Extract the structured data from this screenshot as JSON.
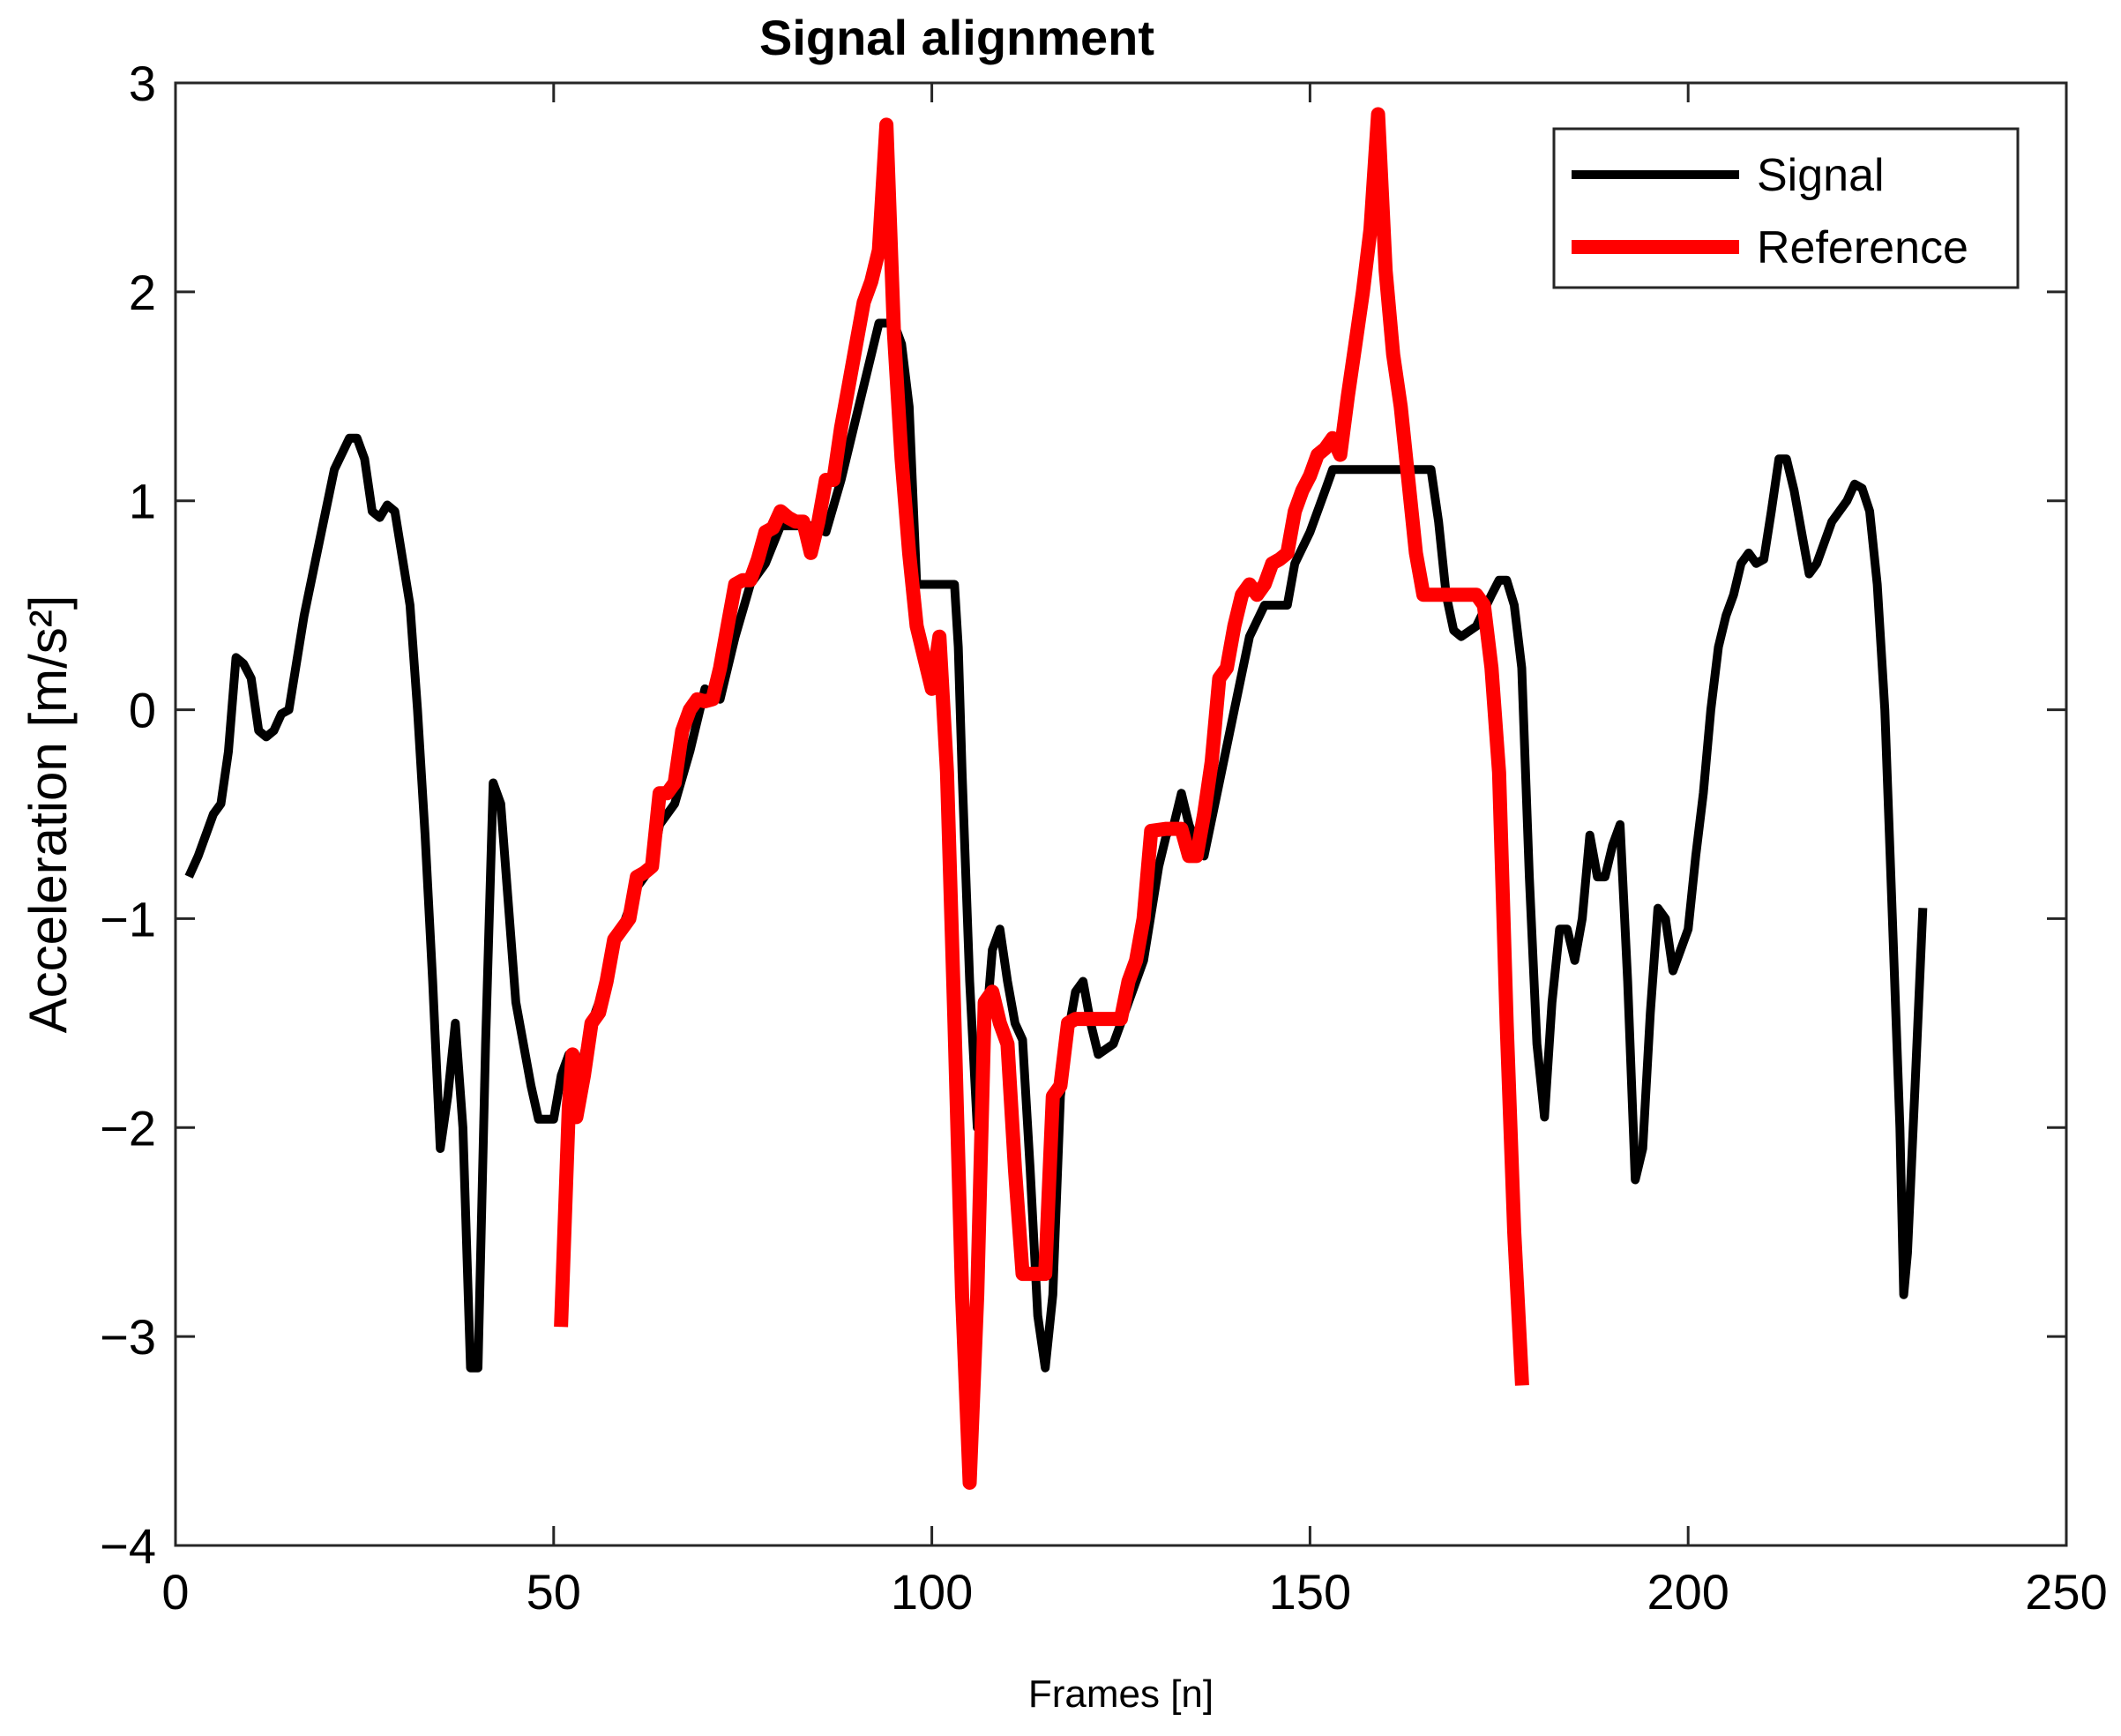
{
  "chart_data": {
    "type": "line",
    "title": "Signal alignment",
    "xlabel": "Frames [n]",
    "ylabel": "Acceleration [m/s²]",
    "xlim": [
      0,
      250
    ],
    "ylim": [
      -4,
      3
    ],
    "xticks": [
      0,
      50,
      100,
      150,
      200,
      250
    ],
    "yticks": [
      -4,
      -3,
      -2,
      -1,
      0,
      1,
      2,
      3
    ],
    "xtick_labels": [
      "0",
      "50",
      "100",
      "150",
      "200",
      "250"
    ],
    "ytick_labels": [
      "−4",
      "−3",
      "−2",
      "−1",
      "0",
      "1",
      "2",
      "3"
    ],
    "grid": false,
    "legend_position": "top-right",
    "series": [
      {
        "name": "Signal",
        "color": "#000000",
        "points": [
          [
            2,
            -0.78
          ],
          [
            3,
            -0.7
          ],
          [
            5,
            -0.5
          ],
          [
            6,
            -0.45
          ],
          [
            7,
            -0.2
          ],
          [
            8,
            0.25
          ],
          [
            9,
            0.22
          ],
          [
            10,
            0.15
          ],
          [
            11,
            -0.1
          ],
          [
            12,
            -0.13
          ],
          [
            13,
            -0.1
          ],
          [
            14,
            -0.02
          ],
          [
            15,
            0.0
          ],
          [
            17,
            0.45
          ],
          [
            19,
            0.8
          ],
          [
            21,
            1.15
          ],
          [
            23,
            1.3
          ],
          [
            24,
            1.3
          ],
          [
            25,
            1.2
          ],
          [
            26,
            0.95
          ],
          [
            27,
            0.92
          ],
          [
            28,
            0.98
          ],
          [
            29,
            0.95
          ],
          [
            31,
            0.5
          ],
          [
            32,
            0.0
          ],
          [
            33,
            -0.6
          ],
          [
            34,
            -1.3
          ],
          [
            35,
            -2.1
          ],
          [
            36,
            -1.85
          ],
          [
            37,
            -1.5
          ],
          [
            38,
            -2.0
          ],
          [
            39,
            -3.15
          ],
          [
            40,
            -3.15
          ],
          [
            41,
            -1.6
          ],
          [
            42,
            -0.35
          ],
          [
            43,
            -0.45
          ],
          [
            45,
            -1.4
          ],
          [
            47,
            -1.8
          ],
          [
            48,
            -1.96
          ],
          [
            50,
            -1.96
          ],
          [
            51,
            -1.75
          ],
          [
            52,
            -1.65
          ],
          [
            53,
            -1.95
          ],
          [
            54,
            -1.65
          ],
          [
            55,
            -1.5
          ],
          [
            57,
            -1.3
          ],
          [
            58,
            -1.1
          ],
          [
            59,
            -1.05
          ],
          [
            61,
            -0.85
          ],
          [
            63,
            -0.75
          ],
          [
            64,
            -0.55
          ],
          [
            66,
            -0.45
          ],
          [
            68,
            -0.2
          ],
          [
            70,
            0.1
          ],
          [
            72,
            0.05
          ],
          [
            74,
            0.35
          ],
          [
            76,
            0.6
          ],
          [
            78,
            0.7
          ],
          [
            80,
            0.88
          ],
          [
            84,
            0.88
          ],
          [
            86,
            0.85
          ],
          [
            88,
            1.1
          ],
          [
            90,
            1.4
          ],
          [
            92,
            1.7
          ],
          [
            93,
            1.85
          ],
          [
            95,
            1.85
          ],
          [
            96,
            1.75
          ],
          [
            97,
            1.45
          ],
          [
            98,
            0.6
          ],
          [
            99,
            0.6
          ],
          [
            101,
            0.6
          ],
          [
            103,
            0.6
          ],
          [
            103.5,
            0.3
          ],
          [
            104,
            -0.3
          ],
          [
            105,
            -1.3
          ],
          [
            106,
            -2.0
          ],
          [
            107,
            -1.6
          ],
          [
            108,
            -1.15
          ],
          [
            109,
            -1.05
          ],
          [
            110,
            -1.3
          ],
          [
            111,
            -1.5
          ],
          [
            112,
            -1.58
          ],
          [
            113,
            -2.2
          ],
          [
            114,
            -2.9
          ],
          [
            115,
            -3.15
          ],
          [
            116,
            -2.8
          ],
          [
            117,
            -1.85
          ],
          [
            118,
            -1.55
          ],
          [
            119,
            -1.35
          ],
          [
            120,
            -1.3
          ],
          [
            121,
            -1.5
          ],
          [
            122,
            -1.65
          ],
          [
            124,
            -1.6
          ],
          [
            126,
            -1.4
          ],
          [
            128,
            -1.2
          ],
          [
            130,
            -0.75
          ],
          [
            131,
            -0.6
          ],
          [
            132,
            -0.55
          ],
          [
            133,
            -0.4
          ],
          [
            134,
            -0.55
          ],
          [
            135,
            -0.65
          ],
          [
            136,
            -0.7
          ],
          [
            138,
            -0.35
          ],
          [
            140,
            0.0
          ],
          [
            142,
            0.35
          ],
          [
            144,
            0.5
          ],
          [
            146,
            0.5
          ],
          [
            147,
            0.5
          ],
          [
            148,
            0.7
          ],
          [
            150,
            0.85
          ],
          [
            152,
            1.05
          ],
          [
            153,
            1.15
          ],
          [
            158,
            1.15
          ],
          [
            162,
            1.15
          ],
          [
            166,
            1.15
          ],
          [
            167,
            0.9
          ],
          [
            168,
            0.55
          ],
          [
            169,
            0.38
          ],
          [
            170,
            0.35
          ],
          [
            172,
            0.4
          ],
          [
            174,
            0.55
          ],
          [
            175,
            0.62
          ],
          [
            176,
            0.62
          ],
          [
            177,
            0.5
          ],
          [
            178,
            0.2
          ],
          [
            179,
            -0.8
          ],
          [
            180,
            -1.6
          ],
          [
            181,
            -1.95
          ],
          [
            182,
            -1.4
          ],
          [
            183,
            -1.05
          ],
          [
            184,
            -1.05
          ],
          [
            185,
            -1.2
          ],
          [
            186,
            -1.0
          ],
          [
            187,
            -0.6
          ],
          [
            188,
            -0.8
          ],
          [
            189,
            -0.8
          ],
          [
            190,
            -0.65
          ],
          [
            191,
            -0.55
          ],
          [
            192,
            -1.3
          ],
          [
            193,
            -2.25
          ],
          [
            194,
            -2.1
          ],
          [
            195,
            -1.45
          ],
          [
            196,
            -0.95
          ],
          [
            197,
            -1.0
          ],
          [
            198,
            -1.25
          ],
          [
            199,
            -1.15
          ],
          [
            200,
            -1.05
          ],
          [
            201,
            -0.7
          ],
          [
            202,
            -0.4
          ],
          [
            203,
            0.0
          ],
          [
            204,
            0.3
          ],
          [
            205,
            0.45
          ],
          [
            206,
            0.55
          ],
          [
            207,
            0.7
          ],
          [
            208,
            0.75
          ],
          [
            209,
            0.7
          ],
          [
            210,
            0.72
          ],
          [
            211,
            0.95
          ],
          [
            212,
            1.2
          ],
          [
            213,
            1.2
          ],
          [
            214,
            1.05
          ],
          [
            215,
            0.85
          ],
          [
            216,
            0.65
          ],
          [
            217,
            0.7
          ],
          [
            218,
            0.8
          ],
          [
            219,
            0.9
          ],
          [
            220,
            0.95
          ],
          [
            221,
            1.0
          ],
          [
            222,
            1.08
          ],
          [
            223,
            1.06
          ],
          [
            224,
            0.95
          ],
          [
            225,
            0.6
          ],
          [
            226,
            0.0
          ],
          [
            227,
            -1.0
          ],
          [
            228,
            -2.0
          ],
          [
            228.5,
            -2.8
          ],
          [
            229,
            -2.6
          ],
          [
            230,
            -1.8
          ],
          [
            231,
            -0.97
          ]
        ]
      },
      {
        "name": "Reference",
        "color": "#ff0000",
        "points": [
          [
            51,
            -2.92
          ],
          [
            52,
            -1.9
          ],
          [
            52.5,
            -1.65
          ],
          [
            53,
            -1.95
          ],
          [
            54,
            -1.75
          ],
          [
            55,
            -1.5
          ],
          [
            56,
            -1.45
          ],
          [
            57,
            -1.3
          ],
          [
            58,
            -1.1
          ],
          [
            59,
            -1.05
          ],
          [
            60,
            -1.0
          ],
          [
            61,
            -0.8
          ],
          [
            62,
            -0.78
          ],
          [
            63,
            -0.75
          ],
          [
            64,
            -0.4
          ],
          [
            65,
            -0.4
          ],
          [
            66,
            -0.35
          ],
          [
            67,
            -0.1
          ],
          [
            68,
            0.0
          ],
          [
            69,
            0.05
          ],
          [
            70,
            0.04
          ],
          [
            71,
            0.05
          ],
          [
            72,
            0.2
          ],
          [
            73,
            0.4
          ],
          [
            74,
            0.6
          ],
          [
            75,
            0.62
          ],
          [
            76,
            0.62
          ],
          [
            77,
            0.72
          ],
          [
            78,
            0.85
          ],
          [
            79,
            0.87
          ],
          [
            80,
            0.95
          ],
          [
            81,
            0.92
          ],
          [
            82,
            0.9
          ],
          [
            83,
            0.9
          ],
          [
            84,
            0.75
          ],
          [
            85,
            0.9
          ],
          [
            86,
            1.1
          ],
          [
            87,
            1.1
          ],
          [
            88,
            1.35
          ],
          [
            89,
            1.55
          ],
          [
            90,
            1.75
          ],
          [
            91,
            1.95
          ],
          [
            92,
            2.05
          ],
          [
            93,
            2.2
          ],
          [
            94,
            2.8
          ],
          [
            95,
            1.8
          ],
          [
            96,
            1.2
          ],
          [
            97,
            0.75
          ],
          [
            98,
            0.4
          ],
          [
            99,
            0.25
          ],
          [
            100,
            0.1
          ],
          [
            101,
            0.35
          ],
          [
            102,
            -0.3
          ],
          [
            103,
            -1.5
          ],
          [
            104,
            -2.8
          ],
          [
            105,
            -3.7
          ],
          [
            106,
            -2.8
          ],
          [
            107,
            -1.4
          ],
          [
            108,
            -1.35
          ],
          [
            109,
            -1.5
          ],
          [
            110,
            -1.6
          ],
          [
            111,
            -2.2
          ],
          [
            112,
            -2.7
          ],
          [
            113,
            -2.7
          ],
          [
            114,
            -2.7
          ],
          [
            115,
            -2.7
          ],
          [
            116,
            -1.85
          ],
          [
            117,
            -1.8
          ],
          [
            118,
            -1.5
          ],
          [
            119,
            -1.48
          ],
          [
            121,
            -1.48
          ],
          [
            124,
            -1.48
          ],
          [
            125,
            -1.48
          ],
          [
            126,
            -1.3
          ],
          [
            127,
            -1.2
          ],
          [
            128,
            -1.0
          ],
          [
            129,
            -0.58
          ],
          [
            131,
            -0.57
          ],
          [
            132,
            -0.57
          ],
          [
            133,
            -0.57
          ],
          [
            134,
            -0.7
          ],
          [
            135,
            -0.7
          ],
          [
            136,
            -0.5
          ],
          [
            137,
            -0.25
          ],
          [
            138,
            0.15
          ],
          [
            139,
            0.2
          ],
          [
            140,
            0.4
          ],
          [
            141,
            0.55
          ],
          [
            142,
            0.6
          ],
          [
            143,
            0.55
          ],
          [
            144,
            0.6
          ],
          [
            145,
            0.7
          ],
          [
            146,
            0.72
          ],
          [
            147,
            0.75
          ],
          [
            148,
            0.95
          ],
          [
            149,
            1.05
          ],
          [
            150,
            1.12
          ],
          [
            151,
            1.22
          ],
          [
            152,
            1.25
          ],
          [
            153,
            1.3
          ],
          [
            154,
            1.22
          ],
          [
            155,
            1.5
          ],
          [
            156,
            1.75
          ],
          [
            157,
            2.0
          ],
          [
            158,
            2.3
          ],
          [
            159,
            2.85
          ],
          [
            160,
            2.1
          ],
          [
            161,
            1.7
          ],
          [
            162,
            1.45
          ],
          [
            163,
            1.1
          ],
          [
            164,
            0.75
          ],
          [
            165,
            0.55
          ],
          [
            166,
            0.55
          ],
          [
            170,
            0.55
          ],
          [
            171,
            0.55
          ],
          [
            172,
            0.55
          ],
          [
            173,
            0.5
          ],
          [
            174,
            0.2
          ],
          [
            175,
            -0.3
          ],
          [
            176,
            -1.5
          ],
          [
            177,
            -2.5
          ],
          [
            178,
            -3.2
          ]
        ]
      }
    ]
  }
}
